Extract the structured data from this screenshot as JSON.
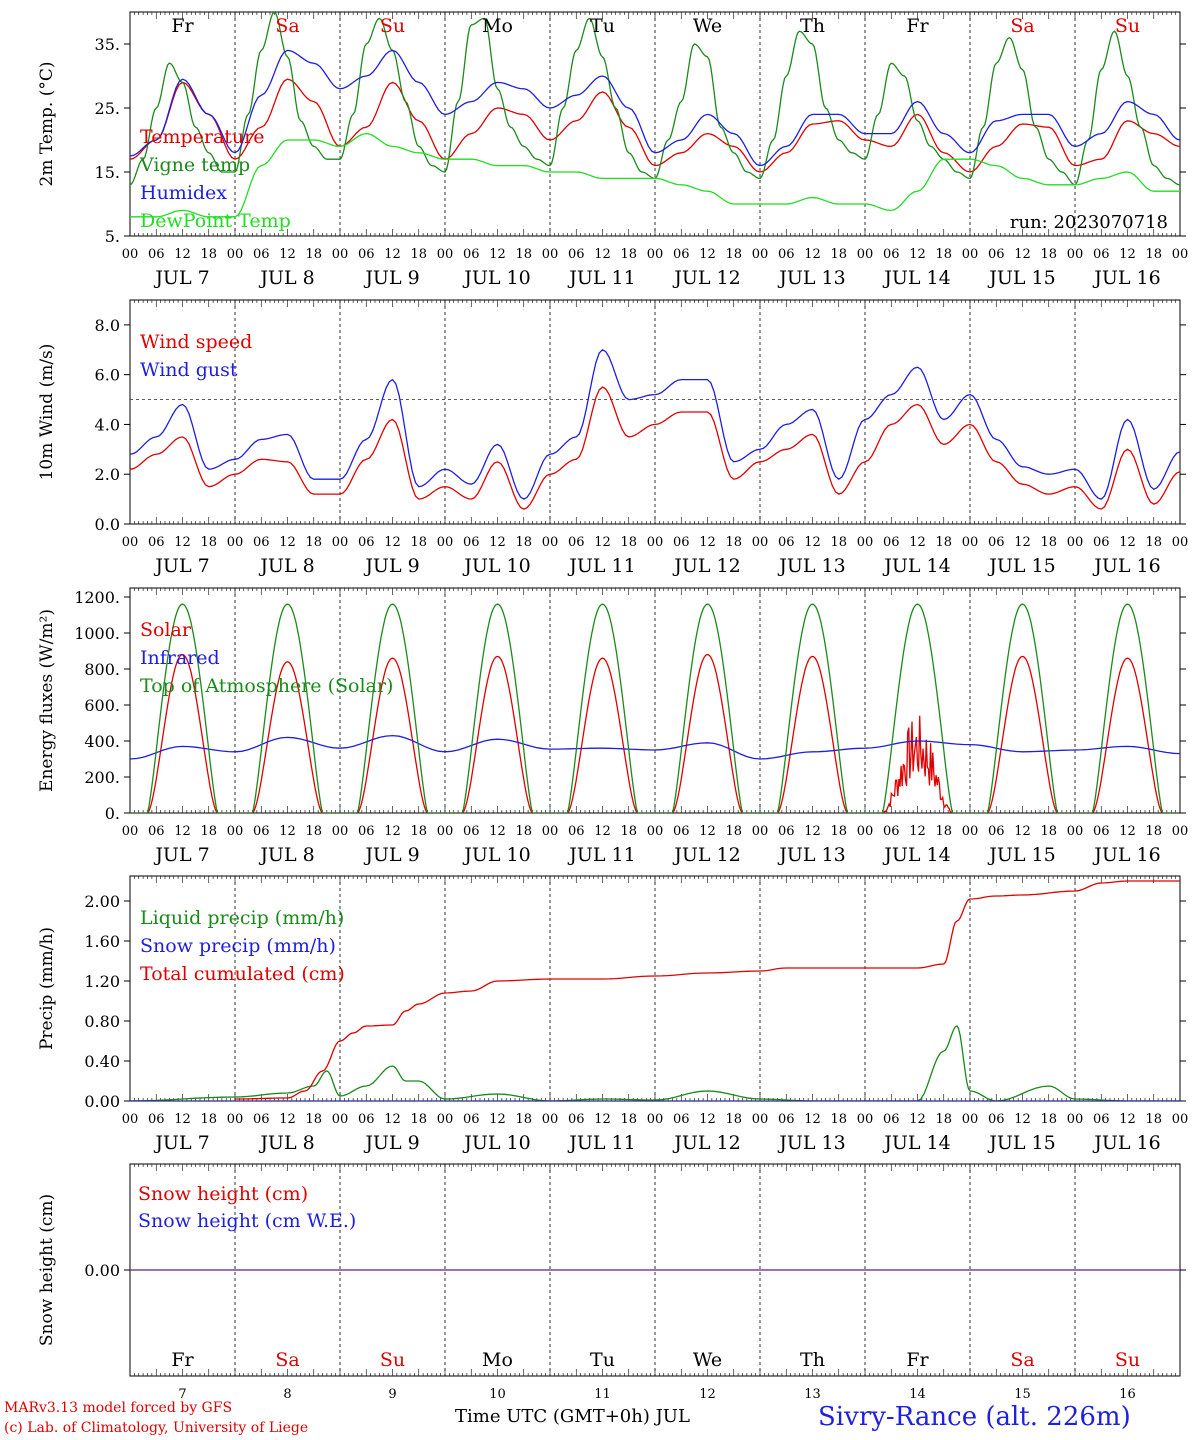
{
  "run_label": "run: 2023070718",
  "day_names": [
    "Fr",
    "Sa",
    "Su",
    "Mo",
    "Tu",
    "We",
    "Th",
    "Fr",
    "Sa",
    "Su"
  ],
  "day_name_colors": [
    "#000000",
    "#e00000",
    "#e00000",
    "#000000",
    "#000000",
    "#000000",
    "#000000",
    "#000000",
    "#e00000",
    "#e00000"
  ],
  "date_labels": [
    "JUL  7",
    "JUL  8",
    "JUL  9",
    "JUL 10",
    "JUL 11",
    "JUL 12",
    "JUL 13",
    "JUL 14",
    "JUL 15",
    "JUL 16"
  ],
  "day_numbers": [
    "7",
    "8",
    "9",
    "10",
    "11",
    "12",
    "13",
    "14",
    "15",
    "16"
  ],
  "hour_labels": [
    "00",
    "06",
    "12",
    "18"
  ],
  "hour_label_end": "00",
  "footer": {
    "credit_line1": "MARv3.13 model forced by GFS",
    "credit_line2": "(c) Lab. of Climatology, University of Liege",
    "xaxis_title": "Time UTC (GMT+0h) JUL",
    "station": "Sivry-Rance (alt. 226m)"
  },
  "colors": {
    "temperature": "#e00000",
    "vigne": "#1a8a1a",
    "humidex": "#1e1ee0",
    "dewpoint": "#22dd22",
    "snow_line": "#7a3aa0"
  },
  "chart_data": [
    {
      "type": "line",
      "ylabel": "2m Temp. (°C)",
      "ylim": [
        5,
        40
      ],
      "yticks": [
        5,
        15,
        25,
        35
      ],
      "ytick_labels": [
        "5.",
        "15.",
        "25.",
        "35."
      ],
      "x_unit": "hours since JUL 7 00 UTC",
      "xlim": [
        0,
        240
      ],
      "annotation": "run: 2023070718",
      "series": [
        {
          "name": "Temperature",
          "color": "#e00000",
          "x": [
            0,
            6,
            12,
            18,
            24,
            30,
            36,
            42,
            48,
            54,
            60,
            66,
            72,
            78,
            84,
            90,
            96,
            102,
            108,
            114,
            120,
            126,
            132,
            138,
            144,
            150,
            156,
            162,
            168,
            174,
            180,
            186,
            192,
            198,
            204,
            210,
            216,
            222,
            228,
            234,
            240
          ],
          "y": [
            17,
            20,
            29,
            24,
            17,
            22,
            29.5,
            26,
            19,
            22,
            29,
            23,
            17,
            21,
            25,
            24,
            20,
            23,
            27.5,
            22,
            16,
            18,
            21,
            19,
            15,
            18,
            22.5,
            23,
            20,
            19,
            24,
            18,
            15,
            19,
            22.5,
            22,
            16,
            17,
            23,
            21,
            19
          ]
        },
        {
          "name": "Vigne temp",
          "color": "#1a8a1a",
          "x": [
            0,
            3,
            6,
            9,
            12,
            15,
            18,
            21,
            24,
            27,
            30,
            33,
            36,
            39,
            42,
            45,
            48,
            51,
            54,
            57,
            60,
            63,
            66,
            69,
            72,
            75,
            78,
            81,
            84,
            87,
            90,
            93,
            96,
            99,
            102,
            105,
            108,
            111,
            114,
            117,
            120,
            123,
            126,
            129,
            132,
            135,
            138,
            141,
            144,
            147,
            150,
            153,
            156,
            159,
            162,
            165,
            168,
            171,
            174,
            177,
            180,
            183,
            186,
            189,
            192,
            195,
            198,
            201,
            204,
            207,
            210,
            213,
            216,
            219,
            222,
            225,
            228,
            231,
            234,
            237,
            240
          ],
          "y": [
            13,
            17,
            25,
            32,
            29,
            22,
            18,
            15,
            15,
            24,
            34,
            40,
            33,
            23,
            19,
            17,
            17,
            24,
            35,
            39,
            34,
            26,
            19,
            16,
            15,
            26,
            38,
            39,
            28,
            22,
            19,
            17,
            16,
            25,
            34,
            39,
            33,
            25,
            18,
            15,
            14,
            20,
            26,
            35,
            33,
            22,
            18,
            15,
            14,
            20,
            30,
            37,
            35,
            25,
            20,
            18,
            17,
            24,
            32,
            30,
            23,
            19,
            17,
            15,
            14,
            22,
            32,
            36,
            31,
            22,
            17,
            15,
            13,
            20,
            31,
            37,
            30,
            22,
            16,
            14,
            13
          ]
        },
        {
          "name": "Humidex",
          "color": "#1e1ee0",
          "x": [
            0,
            6,
            12,
            18,
            24,
            30,
            36,
            42,
            48,
            54,
            60,
            66,
            72,
            78,
            84,
            90,
            96,
            102,
            108,
            114,
            120,
            126,
            132,
            138,
            144,
            150,
            156,
            162,
            168,
            174,
            180,
            186,
            192,
            198,
            204,
            210,
            216,
            222,
            228,
            234,
            240
          ],
          "y": [
            17.5,
            20,
            29.5,
            24,
            18,
            27,
            34,
            32,
            28,
            30,
            34,
            29,
            24,
            26,
            29,
            28,
            25,
            27,
            30,
            25,
            18,
            20,
            24,
            21,
            16,
            19,
            24,
            24,
            21,
            21,
            26,
            21,
            18,
            23,
            24,
            24,
            19,
            21,
            26,
            24,
            20
          ]
        },
        {
          "name": "DewPoint Temp",
          "color": "#22dd22",
          "x": [
            0,
            6,
            12,
            18,
            24,
            30,
            36,
            42,
            48,
            54,
            60,
            66,
            72,
            78,
            84,
            90,
            96,
            102,
            108,
            114,
            120,
            126,
            132,
            138,
            144,
            150,
            156,
            162,
            168,
            174,
            180,
            186,
            192,
            198,
            204,
            210,
            216,
            222,
            228,
            234,
            240
          ],
          "y": [
            8,
            8,
            9,
            8,
            8,
            16,
            20,
            20,
            19,
            21,
            19,
            18,
            17,
            17,
            16,
            16,
            15,
            15,
            14,
            14,
            14,
            13,
            12,
            10,
            10,
            10,
            11,
            10,
            10,
            9,
            12,
            17,
            17,
            16,
            14,
            13,
            13,
            14,
            15,
            12,
            12
          ]
        }
      ]
    },
    {
      "type": "line",
      "ylabel": "10m Wind (m/s)",
      "ylim": [
        0,
        9
      ],
      "yticks": [
        0,
        2,
        4,
        6,
        8
      ],
      "ytick_labels": [
        "0.0",
        "2.0",
        "4.0",
        "6.0",
        "8.0"
      ],
      "reference_line": 5,
      "series": [
        {
          "name": "Wind speed",
          "color": "#e00000",
          "x": [
            0,
            6,
            12,
            18,
            24,
            30,
            36,
            42,
            48,
            54,
            60,
            66,
            72,
            78,
            84,
            90,
            96,
            102,
            108,
            114,
            120,
            126,
            132,
            138,
            144,
            150,
            156,
            162,
            168,
            174,
            180,
            186,
            192,
            198,
            204,
            210,
            216,
            222,
            228,
            234,
            240
          ],
          "y": [
            2.2,
            2.8,
            3.5,
            1.5,
            2.0,
            2.6,
            2.5,
            1.2,
            1.2,
            2.6,
            4.2,
            1.0,
            1.5,
            1.0,
            2.5,
            0.6,
            2.0,
            2.6,
            5.5,
            3.5,
            4.0,
            4.5,
            4.5,
            1.8,
            2.5,
            3.0,
            3.6,
            1.2,
            2.5,
            4.0,
            4.8,
            3.2,
            4.0,
            2.5,
            1.6,
            1.2,
            1.5,
            0.6,
            3.0,
            0.8,
            2.1
          ]
        },
        {
          "name": "Wind gust",
          "color": "#1e1ee0",
          "x": [
            0,
            6,
            12,
            18,
            24,
            30,
            36,
            42,
            48,
            54,
            60,
            66,
            72,
            78,
            84,
            90,
            96,
            102,
            108,
            114,
            120,
            126,
            132,
            138,
            144,
            150,
            156,
            162,
            168,
            174,
            180,
            186,
            192,
            198,
            204,
            210,
            216,
            222,
            228,
            234,
            240
          ],
          "y": [
            2.8,
            3.5,
            4.8,
            2.2,
            2.6,
            3.4,
            3.6,
            1.8,
            1.8,
            3.4,
            5.8,
            1.5,
            2.2,
            1.6,
            3.2,
            1.0,
            2.8,
            3.5,
            7.0,
            5.0,
            5.2,
            5.8,
            5.8,
            2.5,
            3.0,
            4.0,
            4.6,
            1.8,
            4.2,
            5.2,
            6.3,
            4.2,
            5.2,
            3.4,
            2.3,
            2.0,
            2.2,
            1.0,
            4.2,
            1.4,
            2.9
          ]
        }
      ]
    },
    {
      "type": "line",
      "ylabel": "Energy fluxes (W/m²)",
      "ylim": [
        0,
        1250
      ],
      "yticks": [
        0,
        200,
        400,
        600,
        800,
        1000,
        1200
      ],
      "ytick_labels": [
        "0.",
        "200.",
        "400.",
        "600.",
        "800.",
        "1000.",
        "1200."
      ],
      "series": [
        {
          "name": "Solar",
          "color": "#e00000",
          "daily_peak": [
            880,
            840,
            860,
            870,
            860,
            880,
            870,
            550,
            870,
            860
          ]
        },
        {
          "name": "Infrared",
          "color": "#1e1ee0",
          "x": [
            0,
            12,
            24,
            36,
            48,
            60,
            72,
            84,
            96,
            108,
            120,
            132,
            144,
            156,
            168,
            180,
            192,
            204,
            216,
            228,
            240
          ],
          "y": [
            300,
            370,
            340,
            420,
            360,
            430,
            340,
            410,
            355,
            360,
            350,
            390,
            300,
            340,
            360,
            400,
            380,
            340,
            350,
            370,
            330
          ]
        },
        {
          "name": "Top of Atmosphere (Solar)",
          "color": "#1a8a1a",
          "daily_peak": [
            1160,
            1160,
            1160,
            1160,
            1160,
            1160,
            1160,
            1160,
            1160,
            1160
          ]
        }
      ]
    },
    {
      "type": "line",
      "ylabel": "Precip (mm/h)",
      "ylim": [
        0,
        2.25
      ],
      "yticks": [
        0,
        0.4,
        0.8,
        1.2,
        1.6,
        2.0
      ],
      "ytick_labels": [
        "0.00",
        "0.40",
        "0.80",
        "1.20",
        "1.60",
        "2.00"
      ],
      "series": [
        {
          "name": "Liquid precip (mm/h)",
          "color": "#1a8a1a",
          "x": [
            0,
            24,
            36,
            42,
            45,
            48,
            54,
            60,
            63,
            66,
            72,
            84,
            96,
            108,
            120,
            132,
            144,
            156,
            168,
            180,
            186,
            189,
            192,
            198,
            210,
            216,
            228,
            240
          ],
          "y": [
            0,
            0.04,
            0.08,
            0.15,
            0.3,
            0.05,
            0.15,
            0.35,
            0.2,
            0.2,
            0.02,
            0.07,
            0,
            0.02,
            0.01,
            0.1,
            0.02,
            0,
            0,
            0,
            0.5,
            0.75,
            0.1,
            0,
            0.15,
            0.02,
            0,
            0
          ]
        },
        {
          "name": "Snow precip (mm/h)",
          "color": "#1e1ee0",
          "x": [
            0,
            240
          ],
          "y": [
            0,
            0
          ]
        },
        {
          "name": "Total cumulated (cm)",
          "color": "#e00000",
          "x": [
            24,
            36,
            40,
            44,
            48,
            51,
            54,
            60,
            63,
            66,
            72,
            78,
            84,
            96,
            108,
            120,
            132,
            144,
            150,
            156,
            168,
            180,
            186,
            189,
            192,
            198,
            204,
            216,
            222,
            228,
            240
          ],
          "y": [
            0.02,
            0.03,
            0.1,
            0.3,
            0.6,
            0.68,
            0.75,
            0.76,
            0.9,
            0.97,
            1.08,
            1.1,
            1.2,
            1.22,
            1.22,
            1.25,
            1.28,
            1.3,
            1.33,
            1.33,
            1.33,
            1.33,
            1.37,
            1.8,
            2.02,
            2.05,
            2.06,
            2.1,
            2.18,
            2.2,
            2.2
          ]
        }
      ]
    },
    {
      "type": "line",
      "ylabel": "Snow height (cm)",
      "ylim": [
        -1,
        1
      ],
      "yticks": [
        0
      ],
      "ytick_labels": [
        "0.00"
      ],
      "series": [
        {
          "name": "Snow height (cm)",
          "color": "#e00000",
          "x": [
            0,
            240
          ],
          "y": [
            0,
            0
          ]
        },
        {
          "name": "Snow height (cm W.E.)",
          "color": "#1e1ee0",
          "x": [
            0,
            240
          ],
          "y": [
            0,
            0
          ]
        }
      ]
    }
  ]
}
